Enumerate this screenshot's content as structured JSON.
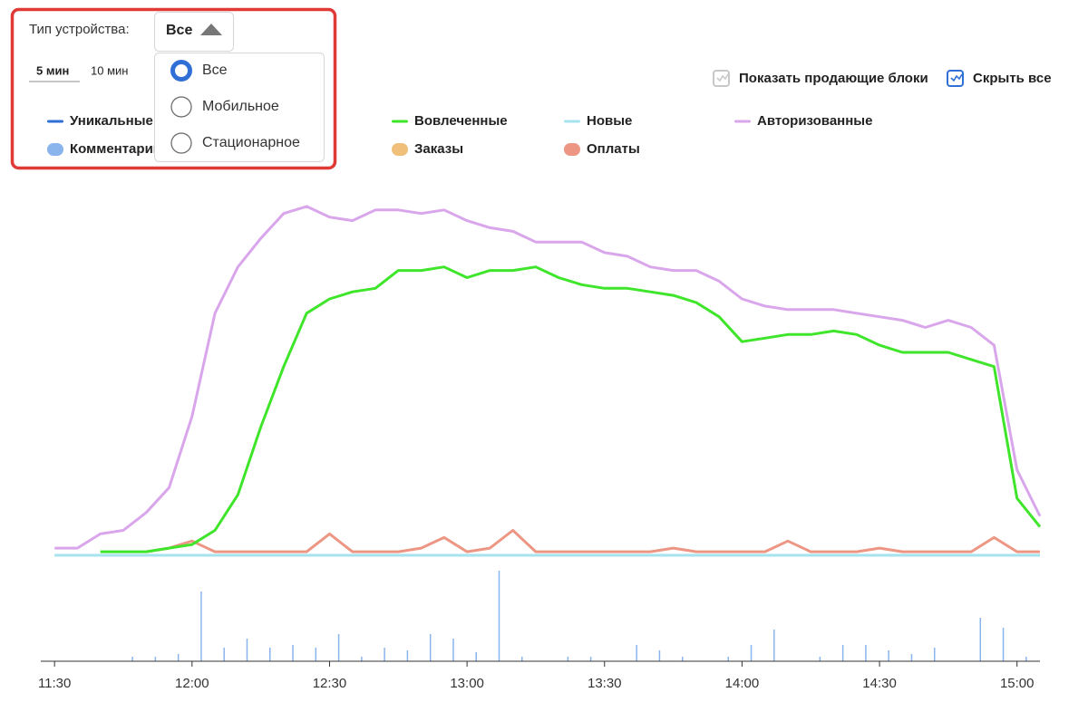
{
  "filter": {
    "label": "Тип устройства:",
    "selected": "Все",
    "options": [
      {
        "label": "Все",
        "checked": true
      },
      {
        "label": "Мобильное",
        "checked": false
      },
      {
        "label": "Стационарное",
        "checked": false
      }
    ]
  },
  "intervals": [
    {
      "label": "5 мин",
      "active": true
    },
    {
      "label": "10 мин",
      "active": false
    }
  ],
  "toggles": [
    {
      "label": "Показать продающие блоки",
      "checked": false
    },
    {
      "label": "Скрыть все",
      "checked": true
    }
  ],
  "legend": [
    {
      "name": "Уникальные",
      "color": "#2f6fd6",
      "marker": "line"
    },
    {
      "name": "Вовлеченные",
      "color": "#3fe52a",
      "marker": "line"
    },
    {
      "name": "Новые",
      "color": "#a6e3ef",
      "marker": "line"
    },
    {
      "name": "Авторизованные",
      "color": "#d9a6ec",
      "marker": "line"
    },
    {
      "name": "Комментарии",
      "color": "#8ab4ec",
      "marker": "dot"
    },
    {
      "name": "Заказы",
      "color": "#f0c07a",
      "marker": "dot"
    },
    {
      "name": "Оплаты",
      "color": "#ec9683",
      "marker": "dot"
    }
  ],
  "chart": {
    "type": "line",
    "x": [
      "11:30",
      "11:35",
      "11:40",
      "11:45",
      "11:50",
      "11:55",
      "12:00",
      "12:05",
      "12:10",
      "12:15",
      "12:20",
      "12:25",
      "12:30",
      "12:35",
      "12:40",
      "12:45",
      "12:50",
      "12:55",
      "13:00",
      "13:05",
      "13:10",
      "13:15",
      "13:20",
      "13:25",
      "13:30",
      "13:35",
      "13:40",
      "13:45",
      "13:50",
      "13:55",
      "14:00",
      "14:05",
      "14:10",
      "14:15",
      "14:20",
      "14:25",
      "14:30",
      "14:35",
      "14:40",
      "14:45",
      "14:50",
      "14:55",
      "15:00",
      "15:05"
    ],
    "xlim": [
      "11:27",
      "15:05"
    ],
    "xticks": [
      "11:30",
      "12:00",
      "12:30",
      "13:00",
      "13:30",
      "14:00",
      "14:30",
      "15:00"
    ],
    "ylim": [
      0,
      100
    ],
    "series": [
      {
        "name": "Новые",
        "color": "#a6e3ef",
        "values": [
          0,
          0,
          0,
          0,
          0,
          0,
          0,
          0,
          0,
          0,
          0,
          0,
          0,
          0,
          0,
          0,
          0,
          0,
          0,
          0,
          0,
          0,
          0,
          0,
          0,
          0,
          0,
          0,
          0,
          0,
          0,
          0,
          0,
          0,
          0,
          0,
          0,
          0,
          0,
          0,
          0,
          0,
          0,
          0
        ]
      },
      {
        "name": "Авторизованные",
        "color": "#d9a6ec",
        "values": [
          2,
          2,
          6,
          7,
          12,
          19,
          39,
          68,
          81,
          89,
          96,
          98,
          95,
          94,
          97,
          97,
          96,
          97,
          94,
          92,
          91,
          88,
          88,
          88,
          85,
          84,
          81,
          80,
          80,
          77,
          72,
          70,
          69,
          69,
          69,
          68,
          67,
          66,
          64,
          66,
          64,
          59,
          24,
          11
        ]
      },
      {
        "name": "Оплаты",
        "color": "#ec9683",
        "values": [
          null,
          null,
          null,
          null,
          1,
          2,
          4,
          1,
          1,
          1,
          1,
          1,
          6,
          1,
          1,
          1,
          2,
          5,
          1,
          2,
          7,
          1,
          1,
          1,
          1,
          1,
          1,
          2,
          1,
          1,
          1,
          1,
          4,
          1,
          1,
          1,
          2,
          1,
          1,
          1,
          1,
          5,
          1,
          1
        ]
      },
      {
        "name": "Вовлеченные",
        "color": "#3fe52a",
        "values": [
          null,
          null,
          1,
          1,
          1,
          2,
          3,
          7,
          17,
          36,
          53,
          68,
          72,
          74,
          75,
          80,
          80,
          81,
          78,
          80,
          80,
          81,
          78,
          76,
          75,
          75,
          74,
          73,
          71,
          67,
          60,
          61,
          62,
          62,
          63,
          62,
          59,
          57,
          57,
          57,
          55,
          53,
          16,
          8
        ]
      }
    ],
    "bars": {
      "type": "bar",
      "color": "#8ab4ec",
      "ylim": [
        0,
        100
      ],
      "x": [
        "11:47",
        "11:52",
        "11:57",
        "12:02",
        "12:07",
        "12:12",
        "12:17",
        "12:22",
        "12:27",
        "12:32",
        "12:37",
        "12:42",
        "12:47",
        "12:52",
        "12:57",
        "13:02",
        "13:07",
        "13:12",
        "13:22",
        "13:27",
        "13:37",
        "13:42",
        "13:47",
        "13:57",
        "14:02",
        "14:07",
        "14:17",
        "14:22",
        "14:27",
        "14:32",
        "14:37",
        "14:42",
        "14:52",
        "14:57",
        "15:02"
      ],
      "values": [
        5,
        5,
        8,
        77,
        15,
        25,
        15,
        18,
        15,
        30,
        5,
        15,
        12,
        30,
        25,
        10,
        100,
        5,
        5,
        5,
        18,
        12,
        5,
        5,
        18,
        35,
        5,
        18,
        18,
        12,
        8,
        15,
        48,
        37,
        5
      ]
    }
  }
}
